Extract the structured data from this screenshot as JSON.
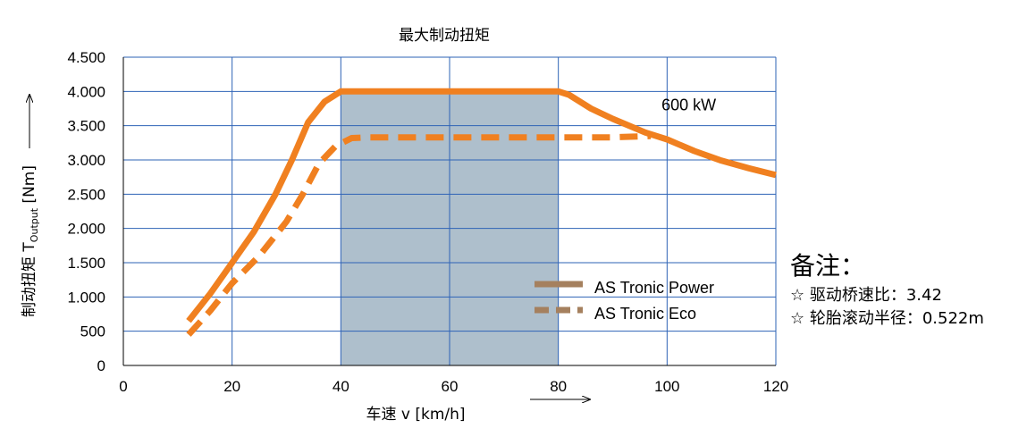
{
  "chart_data": {
    "type": "line",
    "title": "最大制动扭矩",
    "xlabel": "车速 v [km/h]",
    "ylabel_prefix": "制动扭矩 T",
    "ylabel_sub": "Output",
    "ylabel_suffix": " [Nm]",
    "xlim": [
      0,
      120
    ],
    "ylim": [
      0,
      4500
    ],
    "x_ticks": [
      0,
      20,
      40,
      60,
      80,
      100,
      120
    ],
    "y_ticks": [
      0,
      500,
      1000,
      1500,
      2000,
      2500,
      3000,
      3500,
      4000,
      4500
    ],
    "y_tick_labels": [
      "0",
      "500",
      "1.000",
      "1.500",
      "2.000",
      "2.500",
      "3.000",
      "3.500",
      "4.000",
      "4.500"
    ],
    "grid": true,
    "shaded_region": {
      "x": [
        40,
        80
      ],
      "y": [
        0,
        4000
      ],
      "color": "#aebfcc"
    },
    "series": [
      {
        "name": "AS Tronic Power",
        "style": "solid",
        "color": "#f08020",
        "x": [
          12,
          16,
          20,
          24,
          28,
          31,
          34,
          37,
          40,
          45,
          50,
          60,
          70,
          80,
          82,
          86,
          90,
          96,
          100,
          105,
          110,
          115,
          120
        ],
        "y": [
          650,
          1050,
          1500,
          1950,
          2500,
          3000,
          3550,
          3850,
          4000,
          4000,
          4000,
          4000,
          4000,
          4000,
          3950,
          3750,
          3600,
          3400,
          3300,
          3130,
          2990,
          2880,
          2780
        ]
      },
      {
        "name": "AS Tronic Eco",
        "style": "dashed",
        "color": "#f08020",
        "x": [
          12,
          16,
          20,
          25,
          30,
          33,
          36,
          39,
          42,
          45,
          50,
          60,
          70,
          80,
          90,
          97
        ],
        "y": [
          450,
          800,
          1200,
          1600,
          2100,
          2500,
          2950,
          3200,
          3320,
          3330,
          3330,
          3330,
          3330,
          3330,
          3330,
          3350
        ]
      }
    ],
    "annotations": [
      {
        "text": "600 kW",
        "x": 104,
        "y": 3800
      }
    ],
    "legend": {
      "placement": "bottom-right"
    }
  },
  "notes": {
    "title": "备注：",
    "lines": [
      "☆ 驱动桥速比：3.42",
      "☆ 轮胎滚动半径：0.522m"
    ]
  }
}
